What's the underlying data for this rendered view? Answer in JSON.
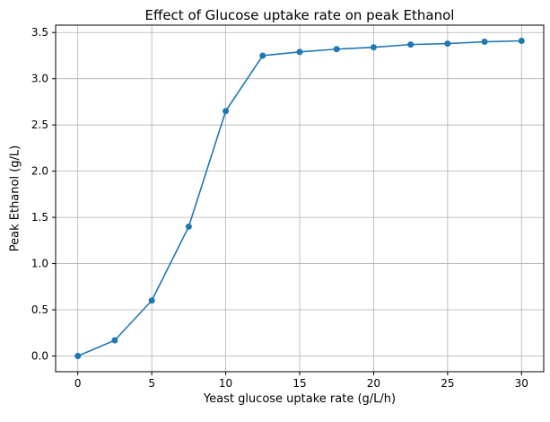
{
  "chart_data": {
    "type": "line",
    "title": "Effect of Glucose uptake rate on peak Ethanol",
    "xlabel": "Yeast glucose uptake rate (g/L/h)",
    "ylabel": "Peak Ethanol (g/L)",
    "x": [
      0,
      2.5,
      5,
      7.5,
      10,
      12.5,
      15,
      17.5,
      20,
      22.5,
      25,
      27.5,
      30
    ],
    "y": [
      0.0,
      0.17,
      0.6,
      1.4,
      2.65,
      3.25,
      3.29,
      3.32,
      3.34,
      3.37,
      3.38,
      3.4,
      3.41
    ],
    "xticks": [
      0,
      5,
      10,
      15,
      20,
      25,
      30
    ],
    "yticks": [
      0.0,
      0.5,
      1.0,
      1.5,
      2.0,
      2.5,
      3.0,
      3.5
    ],
    "xlim": [
      -1.5,
      31.5
    ],
    "ylim": [
      -0.17,
      3.58
    ],
    "grid": true,
    "legend": "none",
    "line_color": "#1f77b4",
    "marker": "o",
    "grid_color": "#b0b0b0",
    "spine_color": "#000000",
    "background": "#ffffff"
  }
}
